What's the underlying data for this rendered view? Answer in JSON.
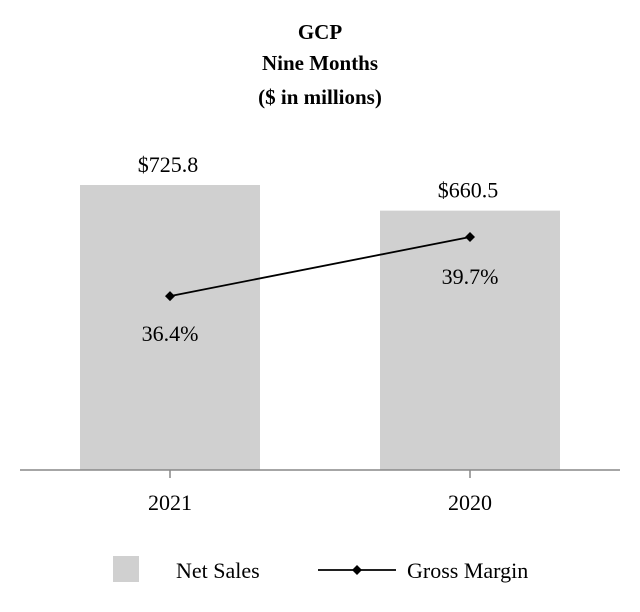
{
  "chart_data": {
    "type": "bar",
    "title_lines": [
      "GCP",
      "Nine Months",
      "($ in millions)"
    ],
    "categories": [
      "2021",
      "2020"
    ],
    "series": [
      {
        "name": "Net Sales",
        "kind": "bar",
        "values": [
          725.8,
          660.5
        ],
        "data_labels": [
          "$725.8",
          "$660.5"
        ],
        "color": "#d0d0d0"
      },
      {
        "name": "Gross Margin",
        "kind": "line",
        "values": [
          36.4,
          39.7
        ],
        "data_labels": [
          "36.4%",
          "39.7%"
        ],
        "color": "#000000"
      }
    ],
    "legend": {
      "position": "bottom",
      "items": [
        "Net Sales",
        "Gross Margin"
      ]
    },
    "ylim_bars": [
      0,
      725.8
    ],
    "ylim_line": [
      26.7,
      42.6
    ],
    "axis_color": "#888888"
  }
}
